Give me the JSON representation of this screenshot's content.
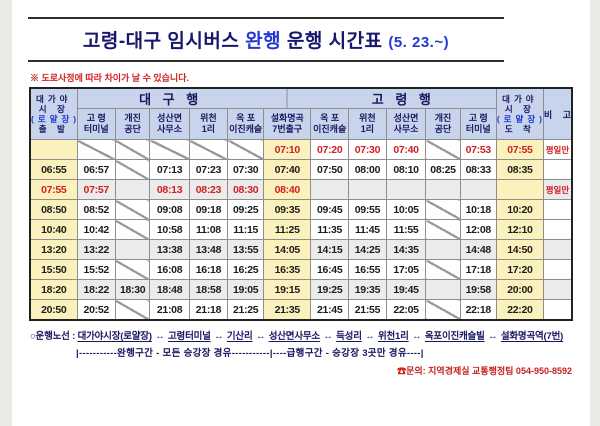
{
  "title": {
    "prefix": "고령-대구 임시버스",
    "highlight": "완행",
    "suffix": "운행 시간표",
    "date": "(5. 23.~)"
  },
  "note": "※ 도로사정에 따라 차이가 날 수 있습니다.",
  "table": {
    "corner_depart": {
      "l1": "대가야",
      "l2": "시 장",
      "l3": "(로얄장)",
      "l4": "출 발"
    },
    "corner_arrive": {
      "l1": "대가야",
      "l2": "시 장",
      "l3": "(로얄장)",
      "l4": "도 착"
    },
    "remark_header": "비 고",
    "group_daegu": "대 구 행",
    "group_goryeong": "고 령 행",
    "stop_headers": [
      {
        "l1": "고 령",
        "l2": "터미널"
      },
      {
        "l1": "개진",
        "l2": "공단"
      },
      {
        "l1": "성산면",
        "l2": "사무소"
      },
      {
        "l1": "위천",
        "l2": "1리"
      },
      {
        "l1": "옥 포",
        "l2": "이진캐슬"
      },
      {
        "l1": "설화명곡",
        "l2": "7번출구"
      },
      {
        "l1": "옥 포",
        "l2": "이진캐슬"
      },
      {
        "l1": "위천",
        "l2": "1리"
      },
      {
        "l1": "성산면",
        "l2": "사무소"
      },
      {
        "l1": "개진",
        "l2": "공단"
      },
      {
        "l1": "고 령",
        "l2": "터미널"
      }
    ],
    "yellow_columns": [
      0,
      6,
      12
    ],
    "rows": [
      {
        "cells": [
          null,
          null,
          null,
          null,
          null,
          null,
          "07:10",
          "07:20",
          "07:30",
          "07:40",
          null,
          "07:53",
          "07:55"
        ],
        "remark": "평일만",
        "red": true,
        "shaded": false
      },
      {
        "cells": [
          "06:55",
          "06:57",
          null,
          "07:13",
          "07:23",
          "07:30",
          "07:40",
          "07:50",
          "08:00",
          "08:10",
          "08:25",
          "08:33",
          "08:35"
        ],
        "remark": "",
        "red": false,
        "shaded": false
      },
      {
        "cells": [
          "07:55",
          "07:57",
          null,
          "08:13",
          "08:23",
          "08:30",
          "08:40",
          null,
          null,
          null,
          null,
          null,
          null
        ],
        "remark": "평일만",
        "red": true,
        "shaded": true
      },
      {
        "cells": [
          "08:50",
          "08:52",
          null,
          "09:08",
          "09:18",
          "09:25",
          "09:35",
          "09:45",
          "09:55",
          "10:05",
          null,
          "10:18",
          "10:20"
        ],
        "remark": "",
        "red": false,
        "shaded": false
      },
      {
        "cells": [
          "10:40",
          "10:42",
          null,
          "10:58",
          "11:08",
          "11:15",
          "11:25",
          "11:35",
          "11:45",
          "11:55",
          null,
          "12:08",
          "12:10"
        ],
        "remark": "",
        "red": false,
        "shaded": false
      },
      {
        "cells": [
          "13:20",
          "13:22",
          null,
          "13:38",
          "13:48",
          "13:55",
          "14:05",
          "14:15",
          "14:25",
          "14:35",
          null,
          "14:48",
          "14:50"
        ],
        "remark": "",
        "red": false,
        "shaded": true
      },
      {
        "cells": [
          "15:50",
          "15:52",
          null,
          "16:08",
          "16:18",
          "16:25",
          "16:35",
          "16:45",
          "16:55",
          "17:05",
          null,
          "17:18",
          "17:20"
        ],
        "remark": "",
        "red": false,
        "shaded": false
      },
      {
        "cells": [
          "18:20",
          "18:22",
          "18:30",
          "18:48",
          "18:58",
          "19:05",
          "19:15",
          "19:25",
          "19:35",
          "19:45",
          null,
          "19:58",
          "20:00"
        ],
        "remark": "",
        "red": false,
        "shaded": true
      },
      {
        "cells": [
          "20:50",
          "20:52",
          null,
          "21:08",
          "21:18",
          "21:25",
          "21:35",
          "21:45",
          "21:55",
          "22:05",
          null,
          "22:18",
          "22:20"
        ],
        "remark": "",
        "red": false,
        "shaded": false
      }
    ]
  },
  "footer": {
    "route_label": "○운행노선 :",
    "stops": [
      "대가야시장(로얄장)",
      "고령터미널",
      "기산리",
      "성산면사무소",
      "득성리",
      "위천1리",
      "옥포이진캐슬빌",
      "설화명곡역(7번)"
    ],
    "arrow": "↔",
    "segment_line": "|-----------완행구간 - 모든 승강장 경유-----------|----급행구간 - 승강장 3곳만 경유----|",
    "contact": "☎문의: 지역경제실 교통행정팀 054-950-8592"
  },
  "colors": {
    "header_bg": "#c7d4ec",
    "highlight_yellow": "#fbf1bd",
    "shaded_row": "#ebebeb",
    "time_red": "#d02023",
    "title_navy": "#17176b",
    "accent_blue": "#2438d2"
  }
}
